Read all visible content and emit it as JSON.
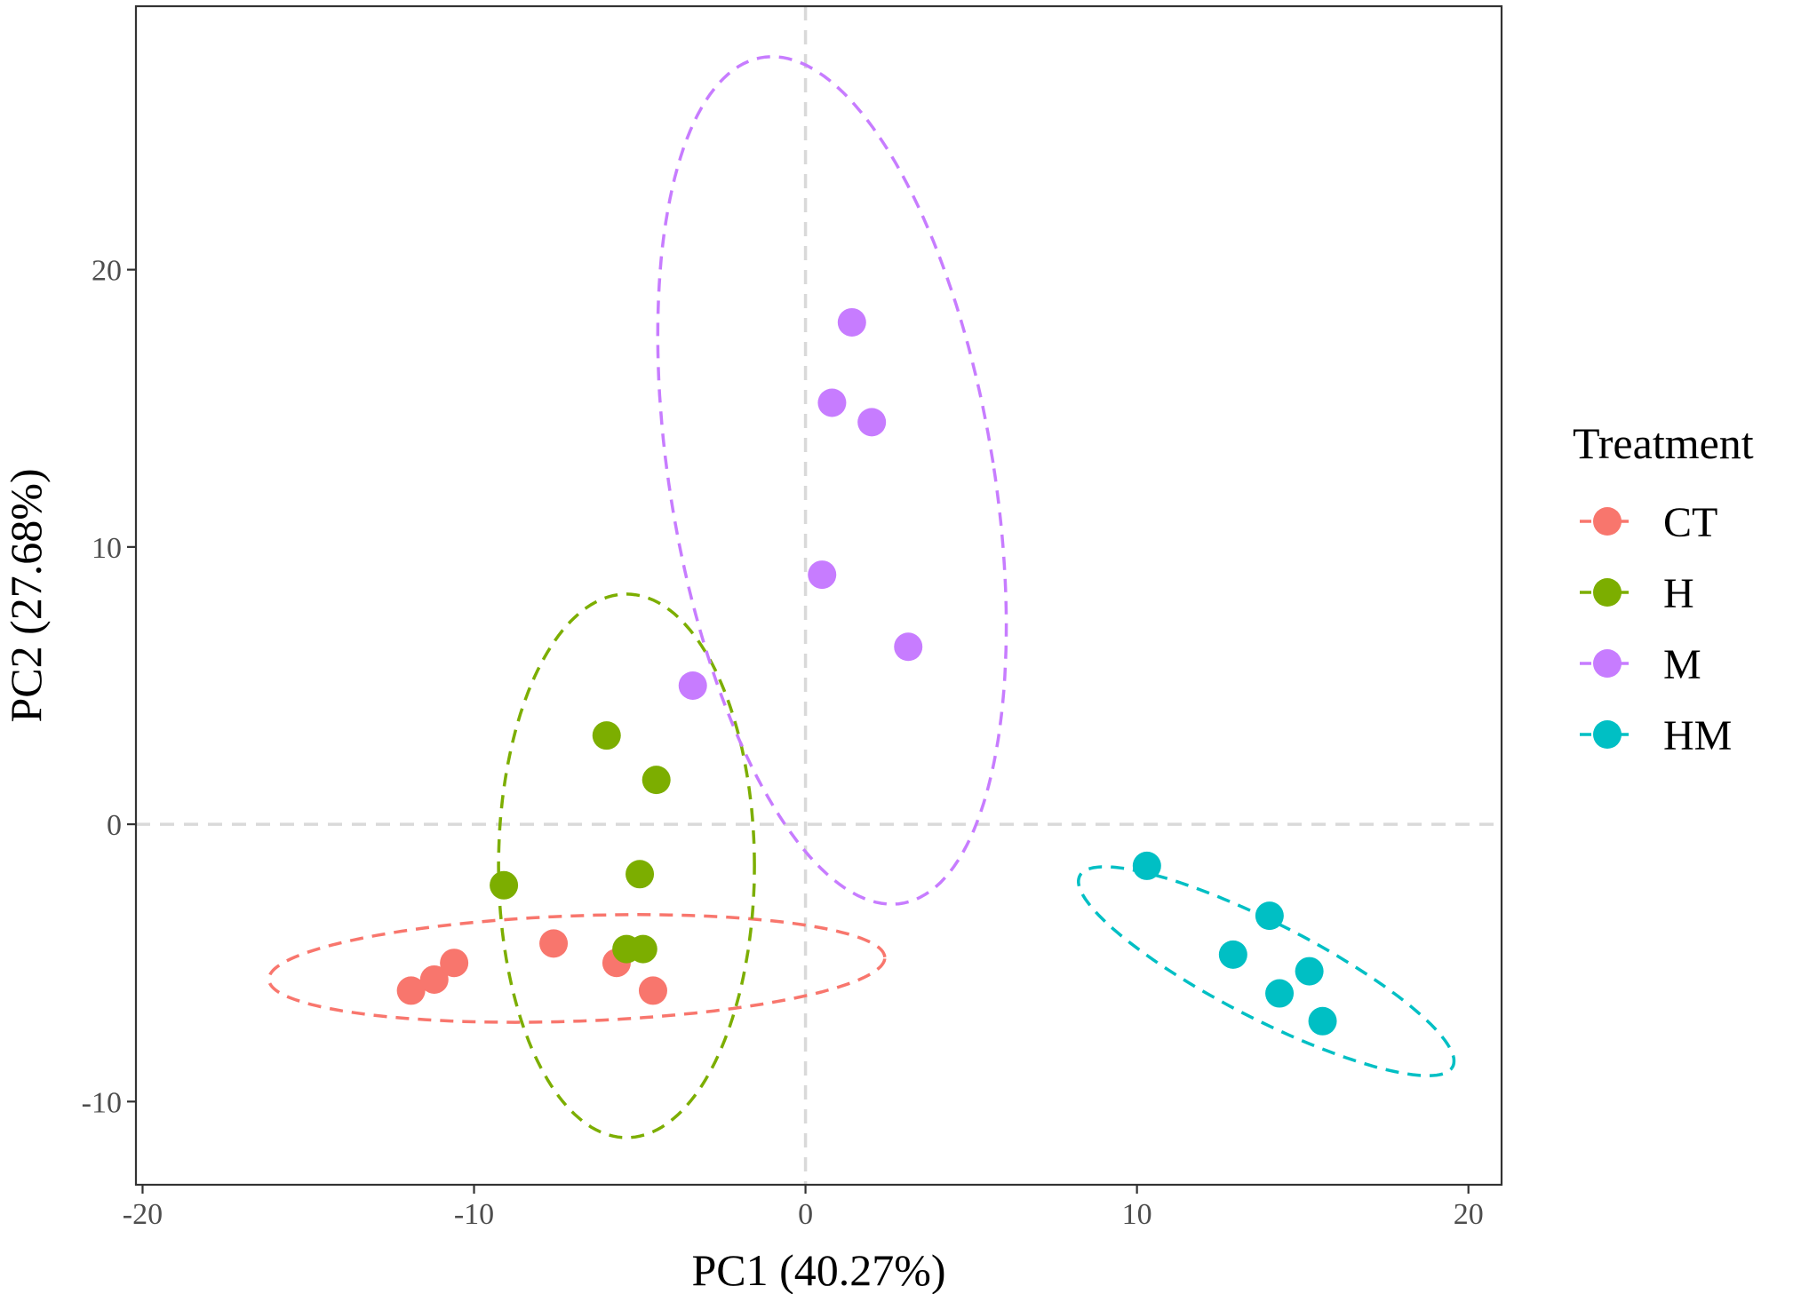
{
  "chart_data": {
    "type": "scatter",
    "title": "",
    "xlabel": "PC1 (40.27%)",
    "ylabel": "PC2 (27.68%)",
    "xlim": [
      -20.2,
      21
    ],
    "ylim": [
      -13,
      29.5
    ],
    "x_ticks": [
      -20,
      -10,
      0,
      10,
      20
    ],
    "y_ticks": [
      -10,
      0,
      10,
      20
    ],
    "x_tick_labels": [
      "-20",
      "-10",
      "0",
      "10",
      "20"
    ],
    "y_tick_labels": [
      "-10",
      "0",
      "10",
      "20"
    ],
    "grid": false,
    "reference_lines": {
      "x": 0,
      "y": 0,
      "style": "dashed",
      "color": "#d9d9d9"
    },
    "legend": {
      "title": "Treatment",
      "position": "right"
    },
    "series": [
      {
        "name": "CT",
        "color": "#F8766D",
        "x": [
          -11.9,
          -11.2,
          -10.6,
          -7.6,
          -5.7,
          -4.6
        ],
        "y": [
          -6.0,
          -5.6,
          -5.0,
          -4.3,
          -5.0,
          -6.0
        ],
        "ellipse": {
          "cx": -6.9,
          "cy": -5.2,
          "rx": 9.3,
          "ry": 1.9,
          "angle_deg": 2.5
        }
      },
      {
        "name": "H",
        "color": "#7CAE00",
        "x": [
          -6.0,
          -4.5,
          -9.1,
          -5.0,
          -5.4,
          -4.9
        ],
        "y": [
          3.2,
          1.6,
          -2.2,
          -1.8,
          -4.5,
          -4.5
        ],
        "ellipse": {
          "cx": -5.4,
          "cy": -1.5,
          "rx": 3.86,
          "ry": 9.8,
          "angle_deg": 0
        }
      },
      {
        "name": "M",
        "color": "#C77CFF",
        "x": [
          1.4,
          0.8,
          2.0,
          0.5,
          3.1,
          -3.4
        ],
        "y": [
          18.1,
          15.2,
          14.5,
          9.0,
          6.4,
          5.0
        ],
        "ellipse": {
          "cx": 0.8,
          "cy": 12.4,
          "rx": 4.9,
          "ry": 15.4,
          "angle_deg": 7.5
        }
      },
      {
        "name": "HM",
        "color": "#00BFC4",
        "x": [
          10.3,
          14.0,
          12.9,
          15.2,
          14.3,
          15.6
        ],
        "y": [
          -1.5,
          -3.3,
          -4.7,
          -5.3,
          -6.1,
          -7.1
        ],
        "ellipse": {
          "cx": 13.9,
          "cy": -5.3,
          "rx": 6.6,
          "ry": 1.65,
          "angle_deg": -32
        }
      }
    ]
  }
}
